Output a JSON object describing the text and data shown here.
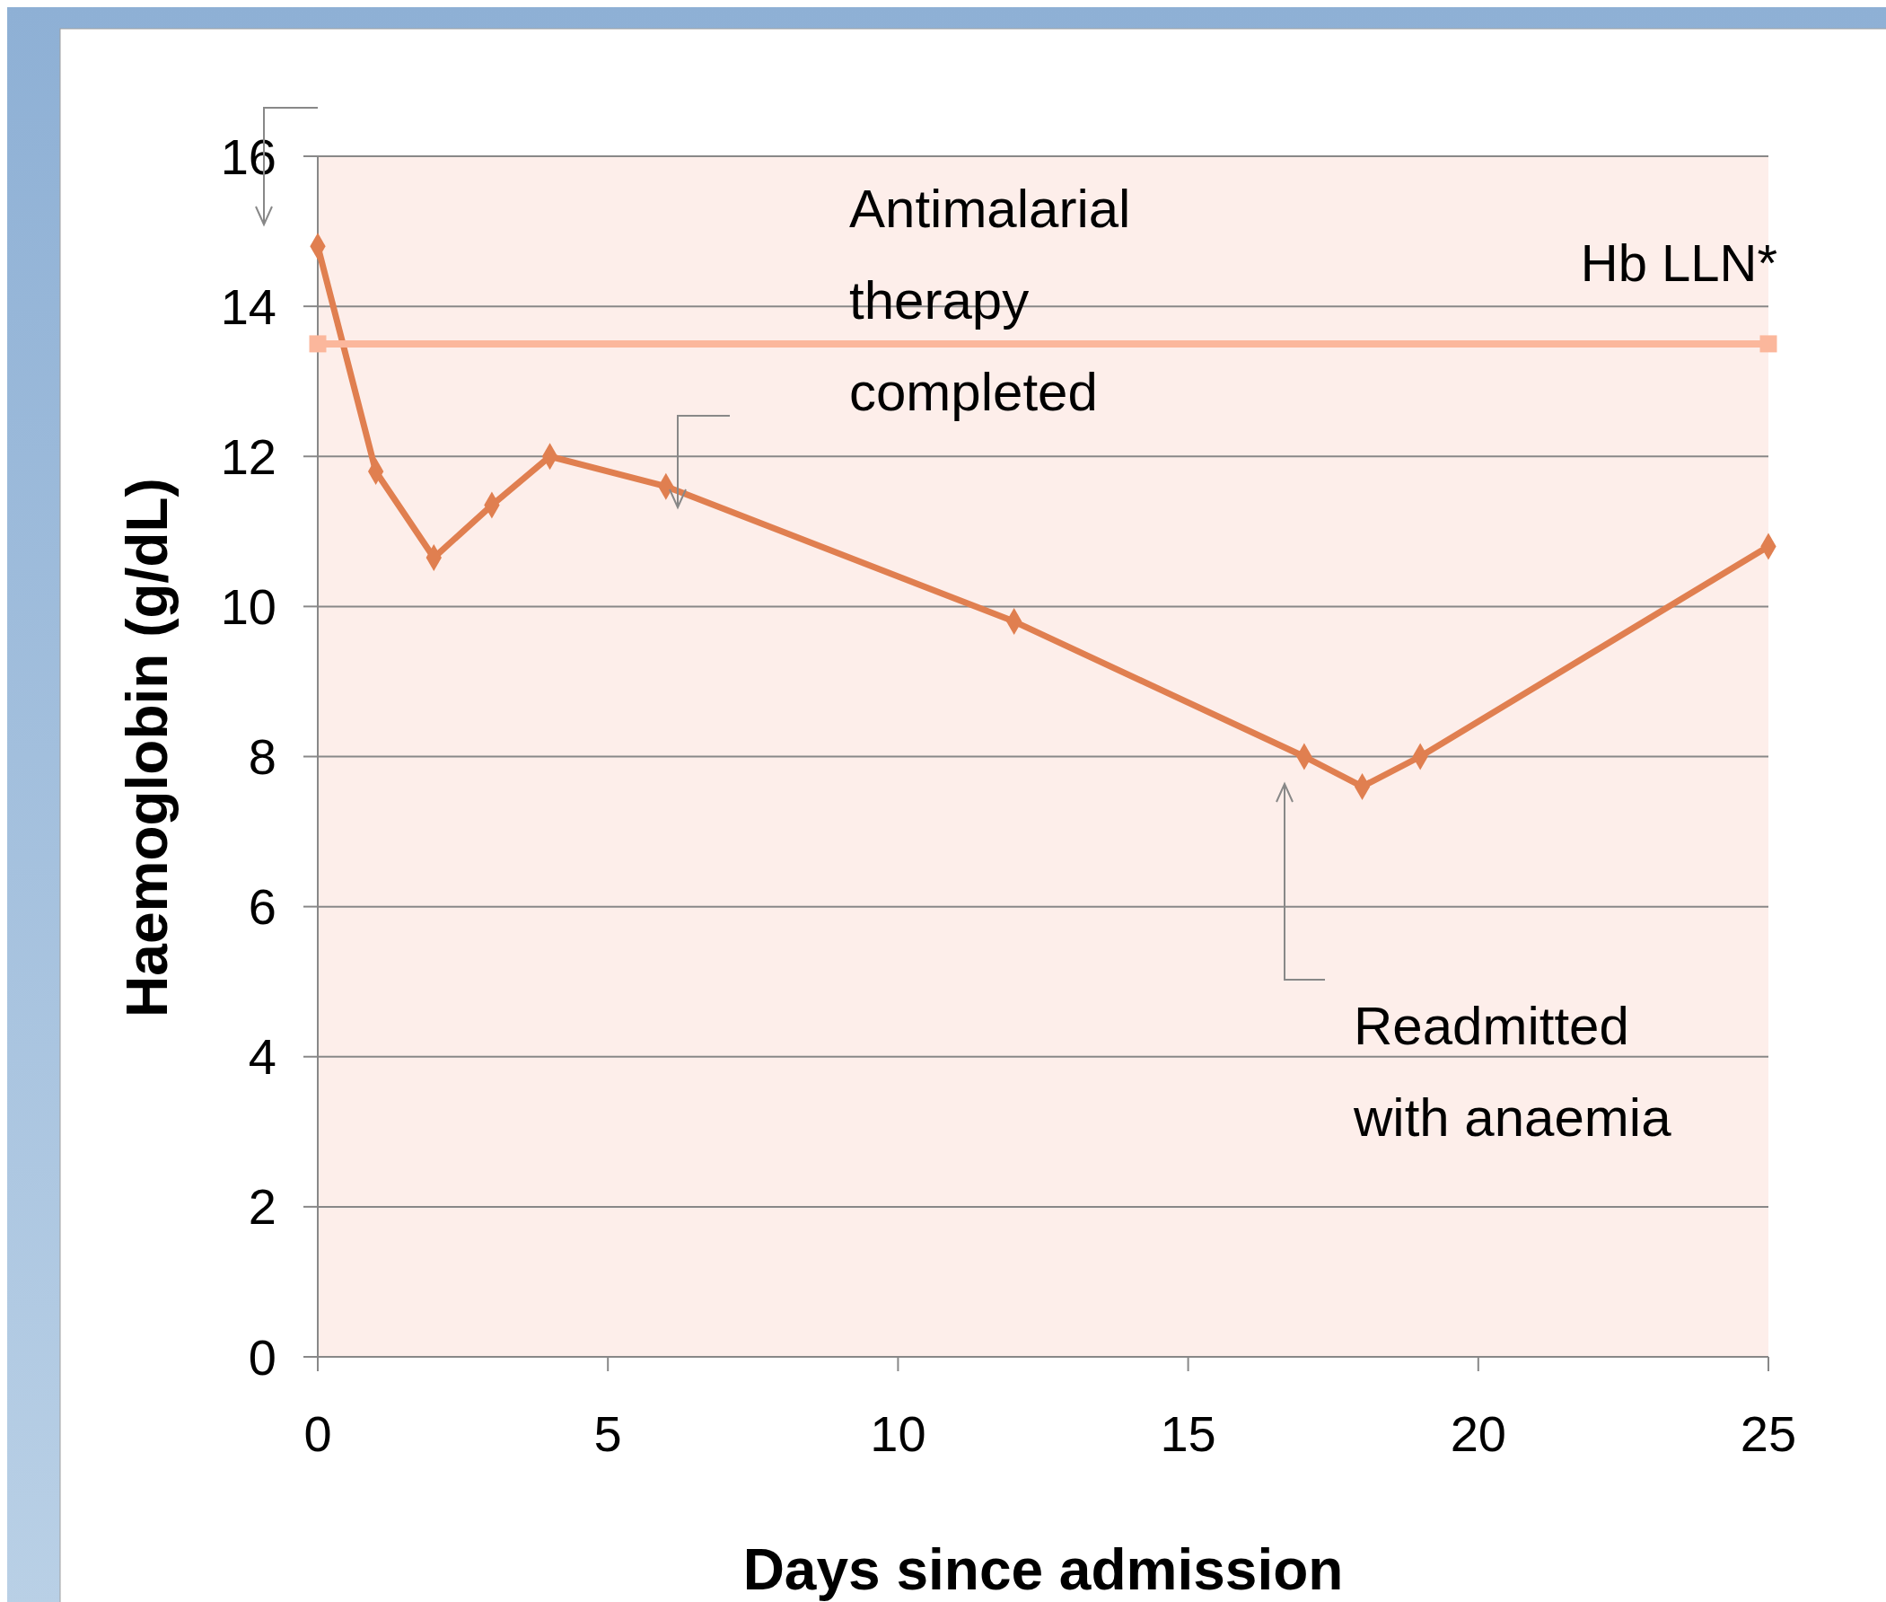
{
  "chart_data": {
    "type": "line",
    "xlabel": "Days since admission",
    "ylabel": "Haemoglobin (g/dL)",
    "xlim": [
      0,
      25
    ],
    "xticks": [
      0,
      5,
      10,
      15,
      20,
      25
    ],
    "ylim": [
      0,
      16
    ],
    "yticks": [
      0,
      2,
      4,
      6,
      8,
      10,
      12,
      14,
      16
    ],
    "grid": "y",
    "line_style": "solid",
    "series": [
      {
        "color": "#e07f50",
        "marker": "diamond",
        "x": [
          0,
          1,
          2,
          3,
          4,
          6,
          12,
          17,
          18,
          19,
          25
        ],
        "values": [
          14.8,
          11.8,
          10.65,
          11.35,
          12,
          11.6,
          9.8,
          8,
          7.6,
          8,
          10.8
        ]
      },
      {
        "name": "Hb LLN*",
        "color": "#fbb79c",
        "marker": "square",
        "x": [
          0,
          25
        ],
        "values": [
          13.5,
          13.5
        ]
      }
    ],
    "annotations": [
      "Antimalarial therapy completed",
      "Readmitted with anaemia"
    ]
  }
}
